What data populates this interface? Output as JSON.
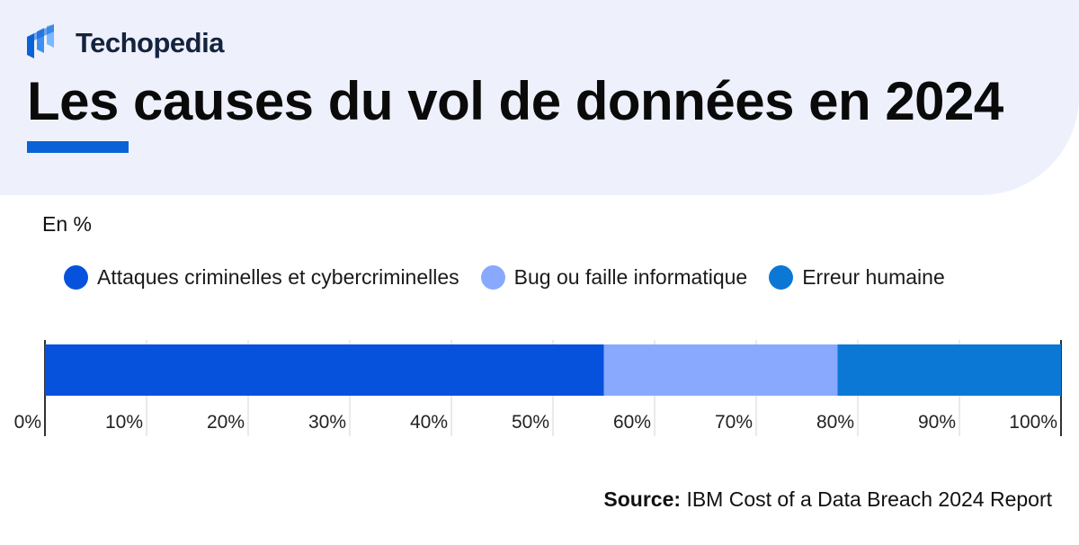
{
  "brand": {
    "name": "Techopedia",
    "logo_icon": "techopedia-logo-icon",
    "color": "#0a63d6"
  },
  "title": "Les causes du vol de données en 2024",
  "unit_label": "En %",
  "source": {
    "label": "Source:",
    "text": "IBM Cost of a Data Breach 2024 Report"
  },
  "colors": {
    "header_bg": "#eef1fb",
    "accent": "#0a63d6"
  },
  "chart_data": {
    "type": "bar",
    "orientation": "horizontal",
    "stacked": true,
    "categories": [
      ""
    ],
    "series": [
      {
        "name": "Attaques criminelles et cybercriminelles",
        "values": [
          55
        ],
        "color": "#0652dd"
      },
      {
        "name": "Bug ou faille informatique",
        "values": [
          23
        ],
        "color": "#89a9ff"
      },
      {
        "name": "Erreur humaine",
        "values": [
          22
        ],
        "color": "#0b78d6"
      }
    ],
    "xlim": [
      0,
      100
    ],
    "xticks": [
      "0%",
      "10%",
      "20%",
      "30%",
      "40%",
      "50%",
      "60%",
      "70%",
      "80%",
      "90%",
      "100%"
    ],
    "ylabel": "En %",
    "grid": true,
    "legend": "top"
  }
}
